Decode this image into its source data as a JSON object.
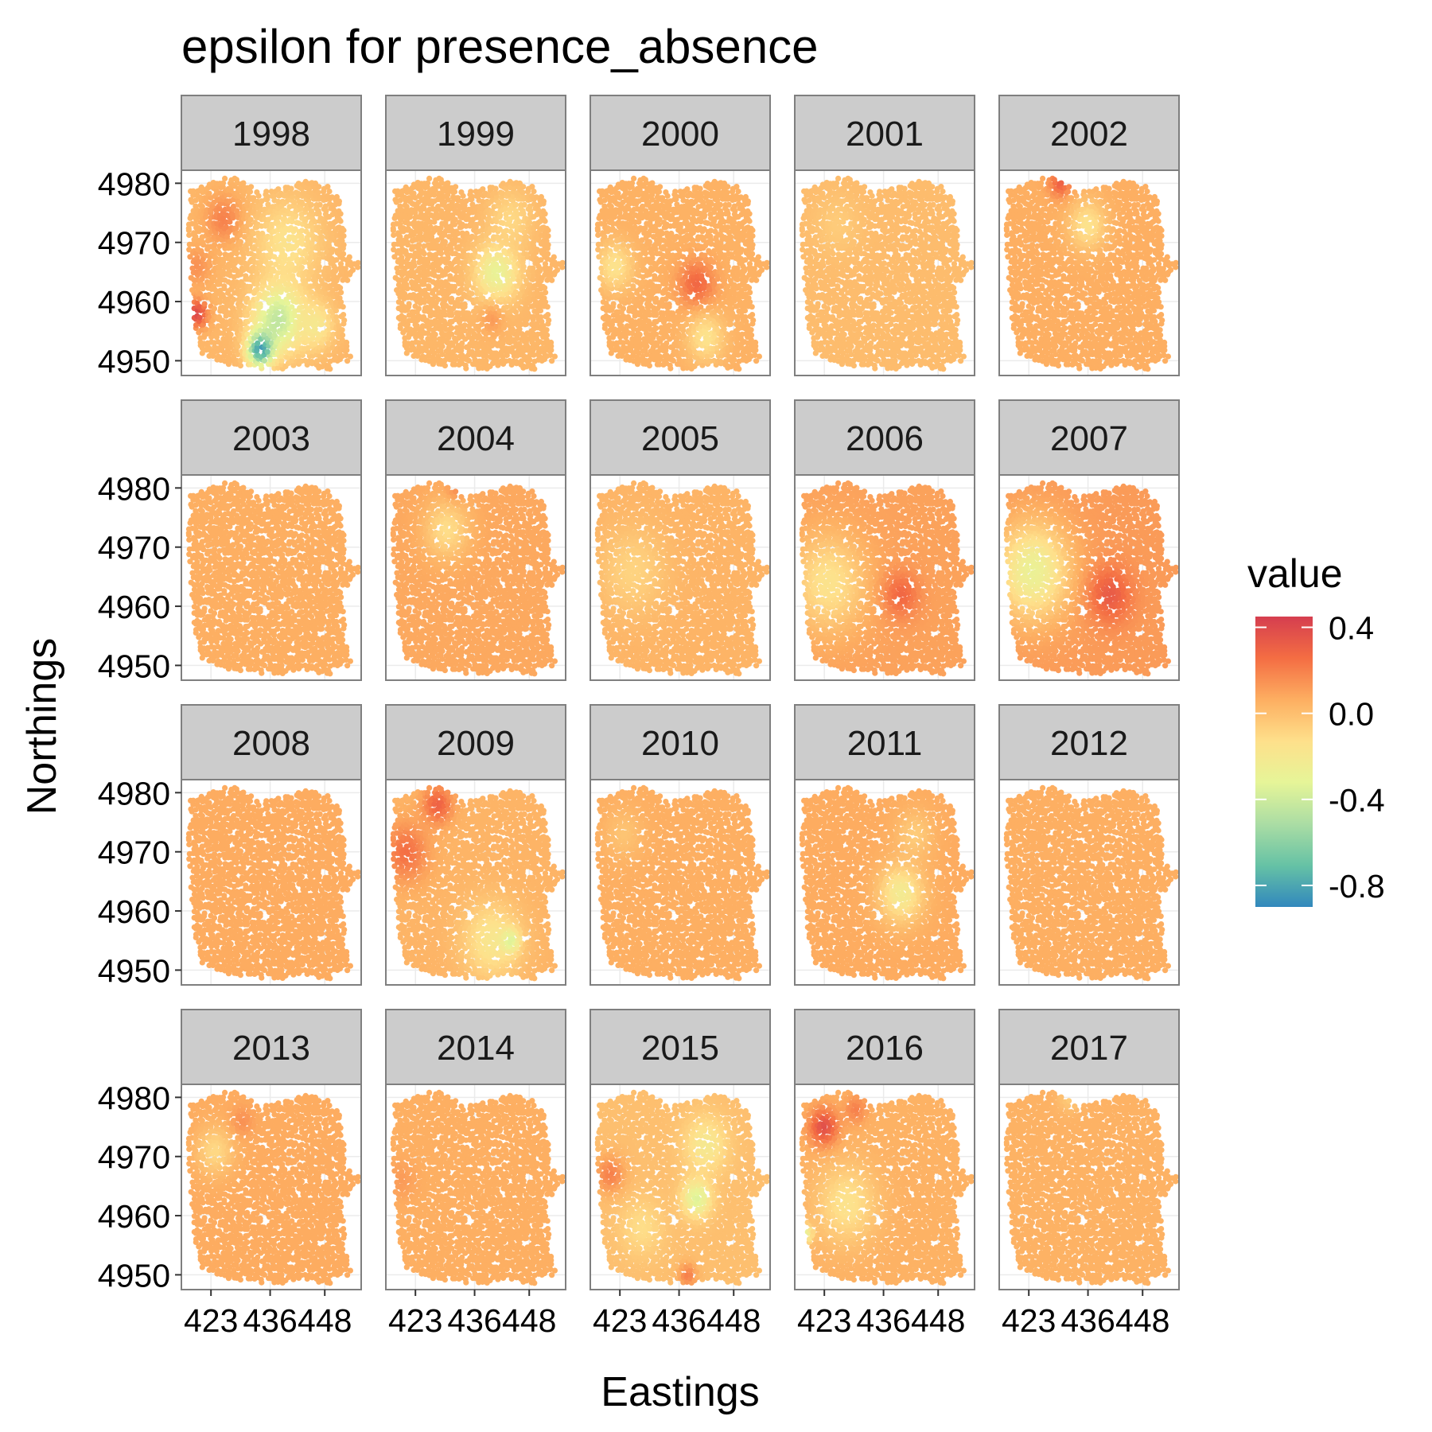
{
  "chart_data": {
    "type": "heatmap",
    "subtype": "faceted spatial point map",
    "title": "epsilon for presence_absence",
    "xlabel": "Eastings",
    "ylabel": "Northings",
    "x_ticks": [
      423,
      436,
      448
    ],
    "y_ticks": [
      4950,
      4960,
      4970,
      4980
    ],
    "xlim": [
      416.5,
      456
    ],
    "ylim": [
      4947.5,
      4982.2
    ],
    "grid": true,
    "legend": {
      "title": "value",
      "placement": "right",
      "ticks": [
        "0.4",
        "0.0",
        "-0.4",
        "-0.8"
      ],
      "tick_values": [
        0.4,
        0.0,
        -0.4,
        -0.8
      ],
      "range": [
        -0.9,
        0.45
      ],
      "colors": [
        "#3288bd",
        "#66c2a5",
        "#abdda4",
        "#e6f598",
        "#fee08b",
        "#fdae61",
        "#f46d43",
        "#d53e4f"
      ]
    },
    "facets": [
      "1998",
      "1999",
      "2000",
      "2001",
      "2002",
      "2003",
      "2004",
      "2005",
      "2006",
      "2007",
      "2008",
      "2009",
      "2010",
      "2011",
      "2012",
      "2013",
      "2014",
      "2015",
      "2016",
      "2017"
    ],
    "facet_values": {
      "1998": {
        "base": 0.03,
        "regions": [
          {
            "x": 426,
            "y": 4974,
            "r": 5,
            "v": 0.2
          },
          {
            "x": 420,
            "y": 4958,
            "r": 3,
            "v": 0.4
          },
          {
            "x": 420,
            "y": 4966,
            "r": 4,
            "v": 0.15
          },
          {
            "x": 440,
            "y": 4970,
            "r": 9,
            "v": -0.15
          },
          {
            "x": 438,
            "y": 4957,
            "r": 7,
            "v": -0.45
          },
          {
            "x": 434,
            "y": 4952,
            "r": 3.5,
            "v": -0.85
          },
          {
            "x": 446,
            "y": 4956,
            "r": 5,
            "v": -0.2
          }
        ]
      },
      "1999": {
        "base": 0.03,
        "regions": [
          {
            "x": 441,
            "y": 4965,
            "r": 6,
            "v": -0.3
          },
          {
            "x": 444,
            "y": 4974,
            "r": 6,
            "v": -0.1
          },
          {
            "x": 440,
            "y": 4957,
            "r": 3,
            "v": 0.12
          }
        ]
      },
      "2000": {
        "base": 0.05,
        "regions": [
          {
            "x": 440,
            "y": 4963,
            "r": 5,
            "v": 0.28
          },
          {
            "x": 422,
            "y": 4966,
            "r": 5,
            "v": -0.15
          },
          {
            "x": 442,
            "y": 4954,
            "r": 5,
            "v": -0.15
          }
        ]
      },
      "2001": {
        "base": 0.01,
        "regions": [
          {
            "x": 426,
            "y": 4973,
            "r": 6,
            "v": -0.05
          }
        ]
      },
      "2002": {
        "base": 0.06,
        "regions": [
          {
            "x": 430,
            "y": 4980,
            "r": 3,
            "v": 0.3
          },
          {
            "x": 436,
            "y": 4973,
            "r": 5,
            "v": -0.15
          }
        ]
      },
      "2003": {
        "base": 0.06,
        "regions": []
      },
      "2004": {
        "base": 0.08,
        "regions": [
          {
            "x": 430,
            "y": 4973,
            "r": 6,
            "v": -0.12
          },
          {
            "x": 432,
            "y": 4980,
            "r": 2.5,
            "v": 0.15
          }
        ]
      },
      "2005": {
        "base": 0.04,
        "regions": [
          {
            "x": 426,
            "y": 4966,
            "r": 9,
            "v": -0.08
          }
        ]
      },
      "2006": {
        "base": 0.1,
        "regions": [
          {
            "x": 424,
            "y": 4964,
            "r": 10,
            "v": -0.15
          },
          {
            "x": 440,
            "y": 4962,
            "r": 5,
            "v": 0.28
          }
        ]
      },
      "2007": {
        "base": 0.12,
        "regions": [
          {
            "x": 424,
            "y": 4966,
            "r": 10,
            "v": -0.28
          },
          {
            "x": 441,
            "y": 4962,
            "r": 6,
            "v": 0.33
          }
        ]
      },
      "2008": {
        "base": 0.07,
        "regions": []
      },
      "2009": {
        "base": 0.04,
        "regions": [
          {
            "x": 421,
            "y": 4970,
            "r": 6,
            "v": 0.25
          },
          {
            "x": 428,
            "y": 4978,
            "r": 4,
            "v": 0.3
          },
          {
            "x": 440,
            "y": 4955,
            "r": 8,
            "v": -0.18
          },
          {
            "x": 444,
            "y": 4955,
            "r": 2.5,
            "v": -0.35
          }
        ]
      },
      "2010": {
        "base": 0.06,
        "regions": [
          {
            "x": 424,
            "y": 4973,
            "r": 5,
            "v": -0.02
          }
        ]
      },
      "2011": {
        "base": 0.07,
        "regions": [
          {
            "x": 440,
            "y": 4963,
            "r": 6,
            "v": -0.22
          },
          {
            "x": 443,
            "y": 4973,
            "r": 5,
            "v": -0.05
          }
        ]
      },
      "2012": {
        "base": 0.06,
        "regions": []
      },
      "2013": {
        "base": 0.07,
        "regions": [
          {
            "x": 424,
            "y": 4971,
            "r": 5,
            "v": -0.1
          },
          {
            "x": 430,
            "y": 4976,
            "r": 3,
            "v": 0.15
          }
        ]
      },
      "2014": {
        "base": 0.06,
        "regions": [
          {
            "x": 420,
            "y": 4966,
            "r": 4,
            "v": 0.12
          }
        ]
      },
      "2015": {
        "base": 0.0,
        "regions": [
          {
            "x": 440,
            "y": 4963,
            "r": 4,
            "v": -0.35
          },
          {
            "x": 442,
            "y": 4972,
            "r": 6,
            "v": -0.2
          },
          {
            "x": 421,
            "y": 4967,
            "r": 4,
            "v": 0.2
          },
          {
            "x": 438,
            "y": 4950,
            "r": 2.5,
            "v": 0.2
          },
          {
            "x": 428,
            "y": 4958,
            "r": 6,
            "v": -0.12
          }
        ]
      },
      "2016": {
        "base": 0.05,
        "regions": [
          {
            "x": 423,
            "y": 4975,
            "r": 4,
            "v": 0.38
          },
          {
            "x": 428,
            "y": 4962,
            "r": 8,
            "v": -0.15
          },
          {
            "x": 419,
            "y": 4957,
            "r": 2,
            "v": -0.3
          },
          {
            "x": 430,
            "y": 4978,
            "r": 3,
            "v": 0.2
          }
        ]
      },
      "2017": {
        "base": 0.05,
        "regions": [
          {
            "x": 432,
            "y": 4980,
            "r": 3,
            "v": -0.05
          }
        ]
      }
    }
  }
}
